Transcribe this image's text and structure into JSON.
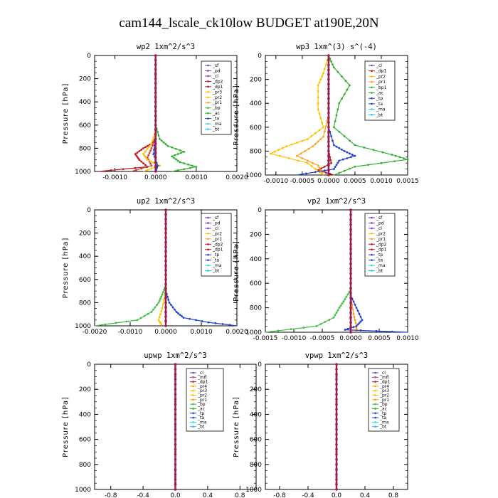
{
  "title": "cam144_lscale_ck10low  BUDGET at190E,20N",
  "colors": {
    "sf": "#7a3fc0",
    "pd": "#7a3fc0",
    "cl": "#7a3fc0",
    "dp2": "#c01820",
    "dp1": "#c01820",
    "pr2": "#ffc000",
    "pr1": "#ffa020",
    "pr3": "#ffc000",
    "pr4": "#ffa020",
    "bp": "#40c040",
    "bp1": "#30b030",
    "ac": "#30b030",
    "tp": "#2040d0",
    "ta": "#2040d0",
    "ma": "#40d0d0",
    "bt": "#20c0ff",
    "mfl": "#b04080",
    "axis": "#000000"
  },
  "chart_data": [
    {
      "type": "line",
      "title": "wp2  1xm^2/s^3",
      "ylabel": "Pressure [hPa]",
      "xlim": [
        -0.0015,
        0.002
      ],
      "ylim": [
        1000,
        0
      ],
      "xticks": [
        -0.001,
        0.0,
        0.001,
        0.002
      ],
      "xticklabels": [
        "-0.0010",
        "0.0000",
        "0.0010",
        "0.0020"
      ],
      "yticks": [
        0,
        200,
        400,
        600,
        800,
        1000
      ],
      "yticklabels": [
        "0",
        "200",
        "400",
        "600",
        "800",
        "1000"
      ],
      "legend": [
        "_sf",
        "_pd",
        "_cl",
        "_dp2",
        "_dp1",
        "_pr3",
        "_pr2",
        "_pr1",
        "_bp",
        "_ac",
        "_ta",
        "_ma",
        "_bt"
      ],
      "series": [
        {
          "name": "_sf",
          "color": "#7a3fc0",
          "x": [
            0,
            0,
            0,
            0,
            0
          ],
          "y": [
            0,
            300,
            600,
            900,
            1000
          ]
        },
        {
          "name": "_dp2",
          "color": "#c01820",
          "x": [
            0,
            0,
            0,
            -0.0001,
            -0.0003,
            -0.0005,
            -0.0004,
            -0.0002,
            -0.0014
          ],
          "y": [
            0,
            600,
            720,
            760,
            800,
            850,
            900,
            960,
            1000
          ]
        },
        {
          "name": "_dp1",
          "color": "#d04040",
          "x": [
            0,
            0,
            -0.0001,
            -0.0002,
            -0.0001,
            -0.0006
          ],
          "y": [
            0,
            700,
            800,
            880,
            950,
            1000
          ]
        },
        {
          "name": "_pr3",
          "color": "#ffc000",
          "x": [
            0,
            0,
            -0.0001,
            -0.0003,
            -0.0002,
            0.0001,
            -0.0003
          ],
          "y": [
            0,
            650,
            760,
            850,
            900,
            950,
            1000
          ]
        },
        {
          "name": "_ac",
          "color": "#30b030",
          "x": [
            0,
            0,
            0.0001,
            0.0003,
            0.0007,
            0.0004,
            0.0006,
            0.001,
            0.0004
          ],
          "y": [
            0,
            600,
            720,
            780,
            830,
            870,
            920,
            960,
            1000
          ]
        },
        {
          "name": "_ta",
          "color": "#2040d0",
          "x": [
            0,
            0,
            -5e-05,
            5e-05,
            0.0
          ],
          "y": [
            0,
            700,
            850,
            950,
            1000
          ]
        }
      ]
    },
    {
      "type": "line",
      "title": "wp3  1xm^(3) s^(-4)",
      "ylabel": "Pressure [hPa]",
      "xlim": [
        -0.0012,
        0.0015
      ],
      "ylim": [
        1000,
        0
      ],
      "xticks": [
        -0.001,
        -0.0005,
        0.0,
        0.0005,
        0.001,
        0.0015
      ],
      "xticklabels": [
        "-0.0010",
        "-0.0005",
        "0.0000",
        "0.0005",
        "0.0010",
        "0.0015"
      ],
      "yticks": [
        0,
        200,
        400,
        600,
        800,
        1000
      ],
      "yticklabels": [
        "0",
        "200",
        "400",
        "600",
        "800",
        "1000"
      ],
      "legend": [
        "_cl",
        "_dp1",
        "_pr2",
        "_pr1",
        "_bp1",
        "_ac",
        "_tp",
        "_ta",
        "_ma",
        "_bt"
      ],
      "series": [
        {
          "name": "_cl",
          "color": "#7a3fc0",
          "x": [
            0,
            0,
            0,
            0
          ],
          "y": [
            0,
            400,
            800,
            1000
          ]
        },
        {
          "name": "_dp1",
          "color": "#c01820",
          "x": [
            0,
            0,
            0,
            5e-05,
            -0.0002,
            0.0001
          ],
          "y": [
            0,
            600,
            800,
            900,
            960,
            1000
          ]
        },
        {
          "name": "_pr2",
          "color": "#ffc000",
          "x": [
            0,
            -0.0001,
            -0.0002,
            -0.0002,
            -0.0001,
            -0.0004,
            -0.0008,
            -0.0011,
            -0.0004,
            -0.0001
          ],
          "y": [
            0,
            150,
            250,
            450,
            600,
            700,
            760,
            820,
            900,
            1000
          ]
        },
        {
          "name": "_pr1",
          "color": "#ffa020",
          "x": [
            0,
            0,
            -0.0001,
            -0.0003,
            -0.0006,
            -0.0002,
            -0.0001
          ],
          "y": [
            0,
            500,
            680,
            760,
            840,
            920,
            1000
          ]
        },
        {
          "name": "_ac",
          "color": "#30b030",
          "x": [
            0,
            0.0001,
            0.0004,
            0.0002,
            0.0001,
            0.0005,
            0.0012,
            0.0015,
            0.0005,
            0.0001
          ],
          "y": [
            0,
            100,
            250,
            400,
            600,
            750,
            830,
            870,
            930,
            1000
          ]
        },
        {
          "name": "_tp",
          "color": "#2040d0",
          "x": [
            0,
            0,
            0.0001,
            0.0003,
            0.0005,
            0.0002,
            0.0001,
            -0.0006
          ],
          "y": [
            0,
            600,
            750,
            800,
            840,
            880,
            950,
            1000
          ]
        }
      ]
    },
    {
      "type": "line",
      "title": "up2  1xm^2/s^3",
      "ylabel": "Pressure [hPa]",
      "xlim": [
        -0.002,
        0.002
      ],
      "ylim": [
        1000,
        0
      ],
      "xticks": [
        -0.002,
        -0.001,
        0.0,
        0.001,
        0.002
      ],
      "xticklabels": [
        "-0.0020",
        "-0.0010",
        "0.0000",
        "0.0010",
        "0.0020"
      ],
      "yticks": [
        0,
        200,
        400,
        600,
        800,
        1000
      ],
      "yticklabels": [
        "0",
        "200",
        "400",
        "600",
        "800",
        "1000"
      ],
      "legend": [
        "_sf",
        "_pd",
        "_cl",
        "_pr2",
        "_pr1",
        "_dp2",
        "_dp1",
        "_tp",
        "_ta",
        "_ma",
        "_bt"
      ],
      "series": [
        {
          "name": "_pd",
          "color": "#c01820",
          "x": [
            0,
            0,
            0,
            0
          ],
          "y": [
            0,
            400,
            800,
            1000
          ]
        },
        {
          "name": "_pr2",
          "color": "#ffc000",
          "x": [
            0,
            0,
            -0.0001,
            -0.0002,
            -0.0001
          ],
          "y": [
            0,
            700,
            850,
            950,
            1000
          ]
        },
        {
          "name": "_dp2",
          "color": "#40c040",
          "x": [
            0,
            0,
            -0.0001,
            -0.0002,
            -0.0004,
            -0.0008,
            -0.002
          ],
          "y": [
            0,
            650,
            730,
            800,
            880,
            950,
            1000
          ]
        },
        {
          "name": "_tp",
          "color": "#2040d0",
          "x": [
            0,
            0,
            0.0001,
            0.0003,
            0.0005,
            0.0012,
            0.002
          ],
          "y": [
            0,
            700,
            800,
            880,
            930,
            970,
            1000
          ]
        }
      ]
    },
    {
      "type": "line",
      "title": "vp2  1xm^2/s^3",
      "ylabel": "Pressure [hPa]",
      "xlim": [
        -0.0015,
        0.001
      ],
      "ylim": [
        1000,
        0
      ],
      "xticks": [
        -0.0015,
        -0.001,
        -0.0005,
        0.0,
        0.0005,
        0.001
      ],
      "xticklabels": [
        "-0.0015",
        "-0.0010",
        "-0.0005",
        "0.0000",
        "0.0005",
        "0.0010"
      ],
      "yticks": [
        0,
        200,
        400,
        600,
        800,
        1000
      ],
      "yticklabels": [
        "0",
        "200",
        "400",
        "600",
        "800",
        "1000"
      ],
      "legend": [
        "_sf",
        "_pd",
        "_cl",
        "_pr2",
        "_pr1",
        "_dp2",
        "_dp1",
        "_tp",
        "_ta",
        "_ma",
        "_bt"
      ],
      "series": [
        {
          "name": "_pd",
          "color": "#c01820",
          "x": [
            0,
            0,
            0,
            0
          ],
          "y": [
            0,
            400,
            800,
            1000
          ]
        },
        {
          "name": "_pr1",
          "color": "#ffa020",
          "x": [
            0,
            0,
            5e-05,
            0.0001,
            0.0001
          ],
          "y": [
            0,
            700,
            850,
            950,
            1000
          ]
        },
        {
          "name": "_dp2",
          "color": "#40c040",
          "x": [
            0,
            0,
            -0.0001,
            -0.0002,
            -0.0003,
            -0.0006,
            -0.0015
          ],
          "y": [
            0,
            650,
            730,
            800,
            880,
            950,
            1000
          ]
        },
        {
          "name": "_tp",
          "color": "#2040d0",
          "x": [
            0,
            0,
            0.0001,
            0.0002,
            0.0001,
            -0.0001,
            0.001
          ],
          "y": [
            0,
            700,
            800,
            900,
            950,
            980,
            1000
          ]
        }
      ]
    },
    {
      "type": "line",
      "title": "upwp  1xm^2/s^3",
      "ylabel": "Pressure [hPa]",
      "xlim": [
        -1.0,
        1.0
      ],
      "ylim": [
        1000,
        0
      ],
      "xticks": [
        -0.8,
        -0.4,
        0.0,
        0.4,
        0.8
      ],
      "xticklabels": [
        "-0.8",
        "-0.4",
        "0.0",
        "0.4",
        "0.8"
      ],
      "yticks": [
        0,
        200,
        400,
        600,
        800,
        1000
      ],
      "yticklabels": [
        "0",
        "200",
        "400",
        "600",
        "800",
        "1000"
      ],
      "legend": [
        "_cl",
        "_mfl",
        "_dp1",
        "_pr4",
        "_pr3",
        "_pr2",
        "_pr1",
        "_bp",
        "_ac",
        "_tp",
        "_ta",
        "_ma",
        "_bt"
      ],
      "series": [
        {
          "name": "_cl",
          "color": "#7a3fc0",
          "x": [
            0,
            0,
            0,
            0
          ],
          "y": [
            0,
            400,
            800,
            1000
          ]
        },
        {
          "name": "_dp1",
          "color": "#c01820",
          "x": [
            0,
            0,
            0,
            0
          ],
          "y": [
            0,
            400,
            800,
            1000
          ]
        }
      ]
    },
    {
      "type": "line",
      "title": "vpwp  1xm^2/s^3",
      "ylabel": "Pressure [hPa]",
      "xlim": [
        -1.0,
        1.0
      ],
      "ylim": [
        1000,
        0
      ],
      "xticks": [
        -0.8,
        -0.4,
        0.0,
        0.4,
        0.8
      ],
      "xticklabels": [
        "-0.8",
        "-0.4",
        "0.0",
        "0.4",
        "0.8"
      ],
      "yticks": [
        0,
        200,
        400,
        600,
        800,
        1000
      ],
      "yticklabels": [
        "0",
        "200",
        "400",
        "600",
        "800",
        "1000"
      ],
      "legend": [
        "_cl",
        "_mfl",
        "_dp1",
        "_pr4",
        "_pr3",
        "_pr2",
        "_pr1",
        "_bp",
        "_ac",
        "_tp",
        "_ta",
        "_ma",
        "_bt"
      ],
      "series": [
        {
          "name": "_cl",
          "color": "#7a3fc0",
          "x": [
            0,
            0,
            0,
            0
          ],
          "y": [
            0,
            400,
            800,
            1000
          ]
        },
        {
          "name": "_dp1",
          "color": "#c01820",
          "x": [
            0,
            0,
            0,
            0
          ],
          "y": [
            0,
            400,
            800,
            1000
          ]
        }
      ]
    }
  ]
}
